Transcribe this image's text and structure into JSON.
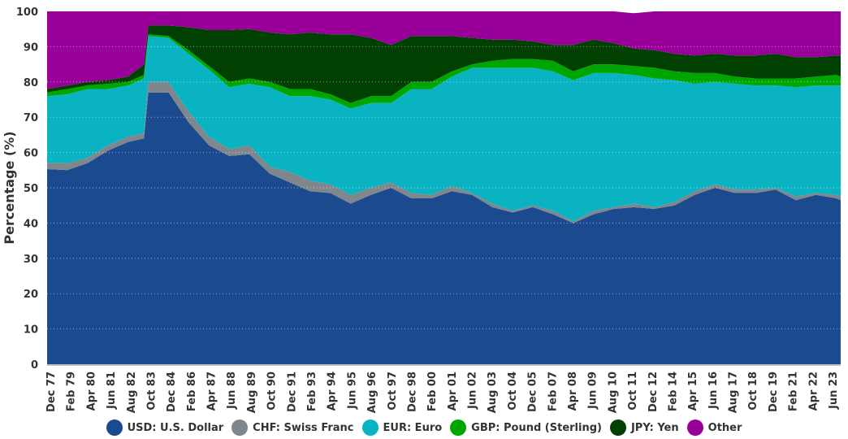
{
  "chart_data": {
    "type": "area",
    "stacked": true,
    "title": "",
    "xlabel": "",
    "ylabel": "Percentage (%)",
    "ylim": [
      0,
      100
    ],
    "yticks": [
      0,
      10,
      20,
      30,
      40,
      50,
      60,
      70,
      80,
      90,
      100
    ],
    "grid": "horizontal dotted",
    "legend_position": "bottom",
    "xtick_labels": [
      "Dec 77",
      "Feb 79",
      "Apr 80",
      "Jun 81",
      "Aug 82",
      "Oct 83",
      "Dec 84",
      "Feb 86",
      "Apr 87",
      "Jun 88",
      "Aug 89",
      "Oct 90",
      "Dec 91",
      "Feb 93",
      "Apr 94",
      "Jun 95",
      "Aug 96",
      "Oct 97",
      "Dec 98",
      "Feb 00",
      "Apr 01",
      "Jun 02",
      "Aug 03",
      "Oct 04",
      "Dec 05",
      "Feb 07",
      "Apr 08",
      "Jun 09",
      "Aug 10",
      "Oct 11",
      "Dec 12",
      "Feb 14",
      "Apr 15",
      "Jun 16",
      "Aug 17",
      "Oct 18",
      "Dec 19",
      "Feb 21",
      "Apr 22",
      "Jun 23"
    ],
    "x": [
      "1977-12",
      "1979-02",
      "1980-04",
      "1981-06",
      "1982-08",
      "1983-07",
      "1983-10",
      "1984-12",
      "1986-02",
      "1987-04",
      "1988-06",
      "1989-08",
      "1990-10",
      "1991-12",
      "1993-02",
      "1994-04",
      "1995-06",
      "1996-08",
      "1997-10",
      "1998-12",
      "2000-02",
      "2001-04",
      "2002-06",
      "2003-08",
      "2004-10",
      "2005-12",
      "2007-02",
      "2008-04",
      "2009-06",
      "2010-08",
      "2011-10",
      "2012-12",
      "2014-02",
      "2015-04",
      "2016-06",
      "2017-08",
      "2018-10",
      "2019-12",
      "2021-02",
      "2022-04",
      "2023-06",
      "2023-09"
    ],
    "series": [
      {
        "name": "USD: U.S. Dollar",
        "color": "#1b4a8f",
        "values": [
          55.3,
          55,
          57,
          60.5,
          63,
          64,
          77,
          77,
          68.5,
          62,
          59,
          59.5,
          54,
          51.5,
          49,
          48.5,
          45.5,
          48,
          50,
          47,
          47,
          49,
          48,
          44.5,
          43,
          44.5,
          42.5,
          40,
          42.5,
          44,
          44.5,
          44,
          45,
          48,
          50,
          48.5,
          48.5,
          49.5,
          46.5,
          48,
          47,
          46.5
        ]
      },
      {
        "name": "CHF: Swiss Franc",
        "color": "#7f868c",
        "values": [
          1.7,
          2,
          1.5,
          1.5,
          1.5,
          1.5,
          3,
          3,
          3,
          2.5,
          2,
          2.5,
          2,
          3,
          3,
          2.5,
          2.5,
          2,
          1.5,
          1.5,
          1,
          1.5,
          0.5,
          1,
          0.5,
          0.5,
          1,
          0.5,
          1,
          0.5,
          1,
          0.5,
          1,
          1,
          1,
          1,
          1,
          0.5,
          1,
          0.5,
          1,
          1
        ]
      },
      {
        "name": "EUR: Euro",
        "color": "#0ab3c1",
        "values": [
          19,
          19.5,
          19.5,
          16,
          14.5,
          15.5,
          13,
          12.5,
          16.5,
          19,
          17.5,
          17.5,
          22.5,
          21.5,
          24,
          24,
          24.5,
          24,
          22.5,
          29.5,
          30,
          31,
          35.5,
          38.5,
          40.5,
          39,
          39.5,
          40,
          39,
          38,
          36.5,
          36.5,
          34.5,
          30.5,
          29,
          30,
          29.5,
          29,
          31,
          30.5,
          31,
          31.5
        ]
      },
      {
        "name": "GBP: Pound (Sterling)",
        "color": "#00a600",
        "values": [
          1,
          1.5,
          1,
          1.5,
          1,
          1,
          0.5,
          0.5,
          1,
          1,
          1.5,
          1.5,
          1.5,
          2,
          2,
          1.5,
          1.5,
          2,
          2,
          2,
          2,
          1.5,
          1,
          2,
          2.5,
          2.5,
          3,
          2.5,
          2.5,
          2.5,
          2.5,
          3,
          2.5,
          3,
          2.5,
          2,
          2,
          2,
          2.5,
          2.5,
          3,
          2.5
        ]
      },
      {
        "name": "JPY: Yen",
        "color": "#004000",
        "values": [
          1,
          1,
          1,
          1,
          1.5,
          3,
          2.5,
          3,
          6.5,
          10.2,
          14.7,
          14,
          14,
          15.5,
          16,
          17,
          19.5,
          16.5,
          14.5,
          13,
          13,
          10,
          7.5,
          6,
          5.5,
          5,
          4.5,
          7.5,
          7,
          6,
          5,
          5,
          5,
          5,
          5.5,
          6,
          6.5,
          7,
          6,
          5.5,
          5.5,
          6
        ]
      },
      {
        "name": "Other",
        "color": "#990099",
        "values": [
          22,
          21,
          20,
          19.5,
          18.5,
          15,
          4,
          4,
          4.5,
          5.3,
          5.3,
          5,
          6,
          6.5,
          6,
          6.5,
          6.5,
          7.5,
          9.5,
          7,
          7,
          7,
          7.5,
          8,
          8,
          8.5,
          9.5,
          9.5,
          8,
          9,
          10,
          11,
          12,
          12.5,
          12,
          12.5,
          12.5,
          12,
          13,
          13,
          12.5,
          12.5
        ]
      }
    ]
  }
}
